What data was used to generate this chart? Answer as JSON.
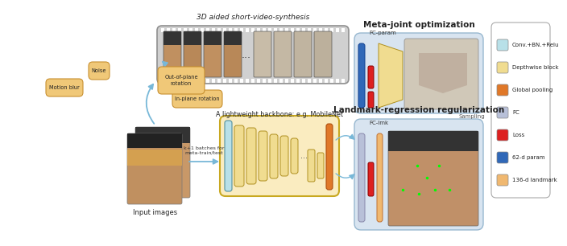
{
  "bg_color": "#ffffff",
  "title": "3D aided short-video-synthesis",
  "colors": {
    "light_blue_block": "#b8e0e8",
    "yellow_block": "#f0dc90",
    "orange_block": "#e07828",
    "fc_block": "#b8c0d8",
    "red_block": "#dd2020",
    "blue_block": "#3068b8",
    "peach_block": "#f0b870",
    "arrow": "#78b8d8",
    "aug_fill": "#f0c878",
    "aug_edge": "#c89030",
    "backbone_fill": "#faecc0",
    "backbone_edge": "#c8a820",
    "panel_fill": "#d8e4f0",
    "panel_edge": "#98b8d0",
    "video_fill": "#d0d0d0",
    "video_edge": "#909090",
    "legend_fill": "#ffffff",
    "legend_edge": "#aaaaaa"
  },
  "legend_items": [
    {
      "color": "#b8e0e8",
      "label": "Conv.+BN.+Relu"
    },
    {
      "color": "#f0dc90",
      "label": "Depthwise block"
    },
    {
      "color": "#e07828",
      "label": "Global pooling"
    },
    {
      "color": "#b8c0d8",
      "label": "FC"
    },
    {
      "color": "#dd2020",
      "label": "Loss"
    },
    {
      "color": "#3068b8",
      "label": "62-d param"
    },
    {
      "color": "#f0b870",
      "label": "136-d landmark"
    }
  ]
}
